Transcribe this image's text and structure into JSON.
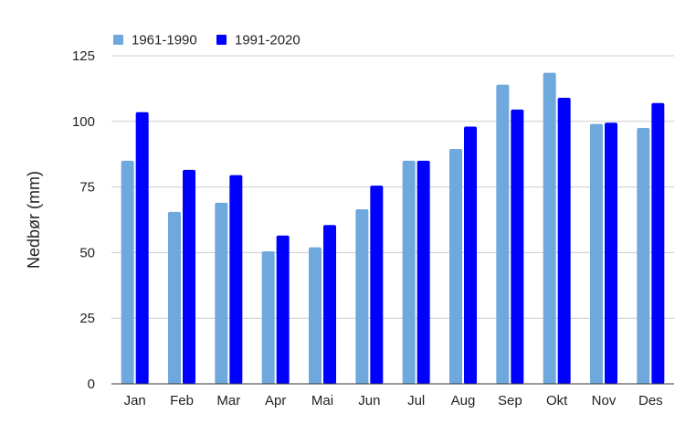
{
  "chart_data": {
    "type": "bar",
    "title": "",
    "xlabel": "",
    "ylabel": "Nedbør (mm)",
    "ylim": [
      0,
      125
    ],
    "yticks": [
      0,
      25,
      50,
      75,
      100,
      125
    ],
    "grid": true,
    "legend_position": "top-left",
    "categories": [
      "Jan",
      "Feb",
      "Mar",
      "Apr",
      "Mai",
      "Jun",
      "Jul",
      "Aug",
      "Sep",
      "Okt",
      "Nov",
      "Des"
    ],
    "series": [
      {
        "name": "1961-1990",
        "color": "#6fa8dc",
        "values": [
          85,
          65.5,
          69,
          50.5,
          52,
          66.5,
          85,
          89.5,
          114,
          118.5,
          99,
          97.5
        ]
      },
      {
        "name": "1991-2020",
        "color": "#0000ff",
        "values": [
          103.5,
          81.5,
          79.5,
          56.5,
          60.5,
          75.5,
          85,
          98,
          104.5,
          109,
          99.5,
          107
        ]
      }
    ]
  }
}
